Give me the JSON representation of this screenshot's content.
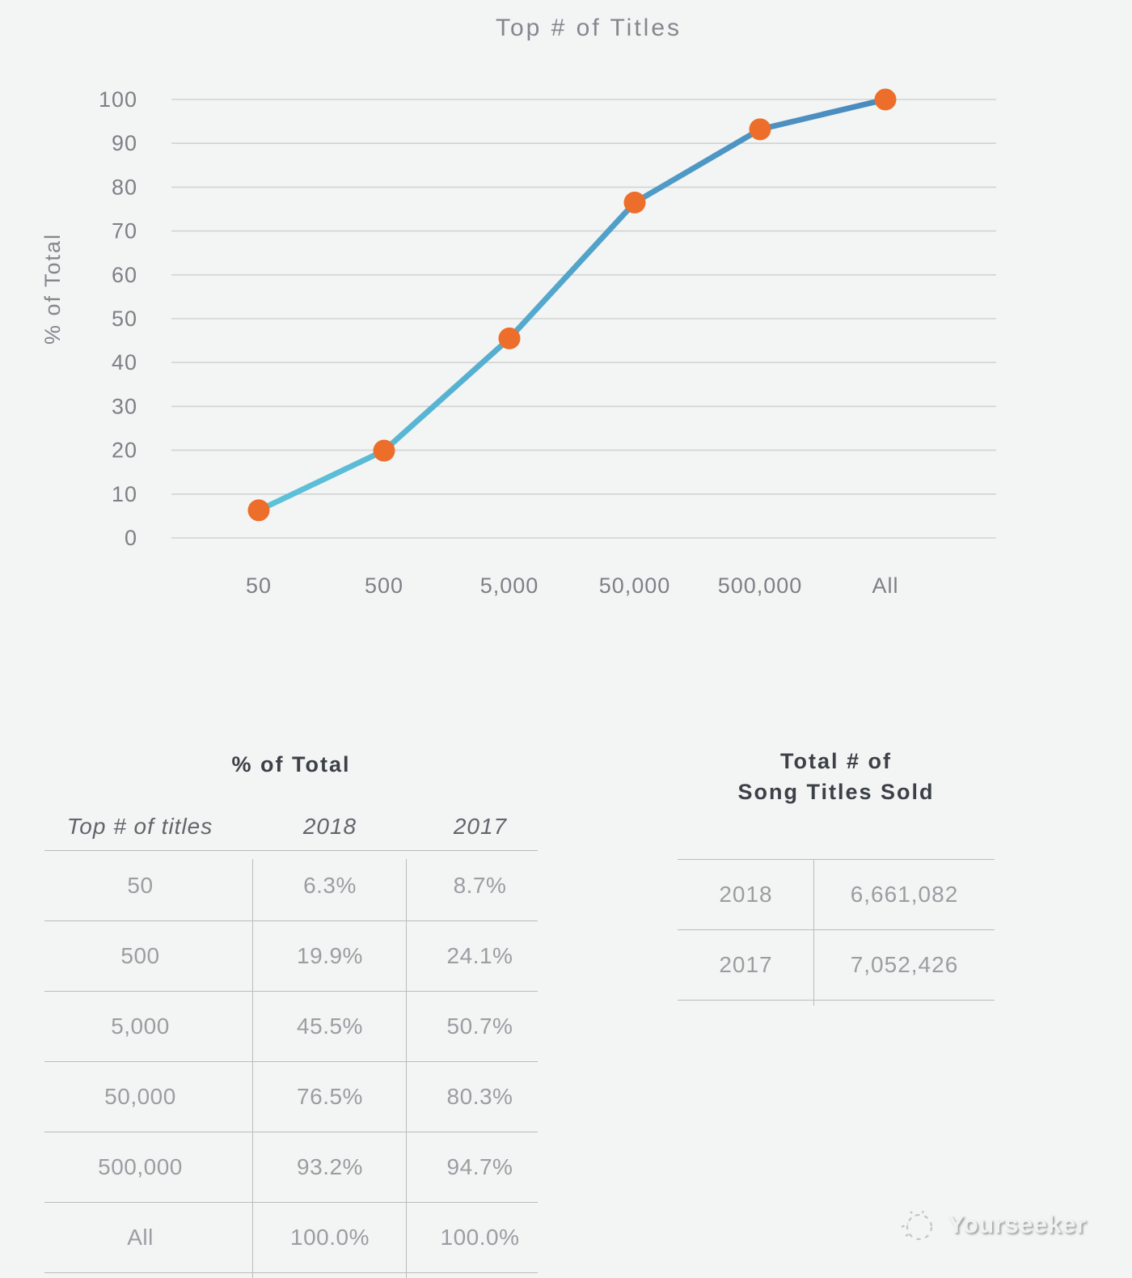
{
  "chart": {
    "title": "Top # of Titles",
    "ylabel": "% of Total"
  },
  "chart_data": {
    "type": "line",
    "title": "Top # of Titles",
    "xlabel": "",
    "ylabel": "% of Total",
    "categories": [
      "50",
      "500",
      "5,000",
      "50,000",
      "500,000",
      "All"
    ],
    "series": [
      {
        "name": "2018",
        "values": [
          6.3,
          19.9,
          45.5,
          76.5,
          93.2,
          100.0
        ]
      }
    ],
    "ylim": [
      0,
      100
    ],
    "yticks": [
      0,
      10,
      20,
      30,
      40,
      50,
      60,
      70,
      80,
      90,
      100
    ],
    "grid": true,
    "legend": "none",
    "line_gradient_start": "#5cc3da",
    "line_gradient_end": "#4a8abe",
    "marker_color": "#ed6e2a",
    "grid_color": "#d2d3d4",
    "tick_color": "#7c8186",
    "title_color": "#83888d"
  },
  "pct_table": {
    "title": "% of Total",
    "headers": [
      "Top # of titles",
      "2018",
      "2017"
    ],
    "rows": [
      [
        "50",
        "6.3%",
        "8.7%"
      ],
      [
        "500",
        "19.9%",
        "24.1%"
      ],
      [
        "5,000",
        "45.5%",
        "50.7%"
      ],
      [
        "50,000",
        "76.5%",
        "80.3%"
      ],
      [
        "500,000",
        "93.2%",
        "94.7%"
      ],
      [
        "All",
        "100.0%",
        "100.0%"
      ]
    ]
  },
  "totals_table": {
    "title_line1": "Total # of",
    "title_line2": "Song Titles Sold",
    "rows": [
      [
        "2018",
        "6,661,082"
      ],
      [
        "2017",
        "7,052,426"
      ]
    ]
  },
  "watermark": {
    "text": "Yourseeker"
  },
  "colors": {
    "background": "#f3f4f4",
    "table_border": "#b9bcbe",
    "table_text": "#9b9ea1",
    "header_text": "#61666b",
    "title_text": "#3b4147"
  }
}
